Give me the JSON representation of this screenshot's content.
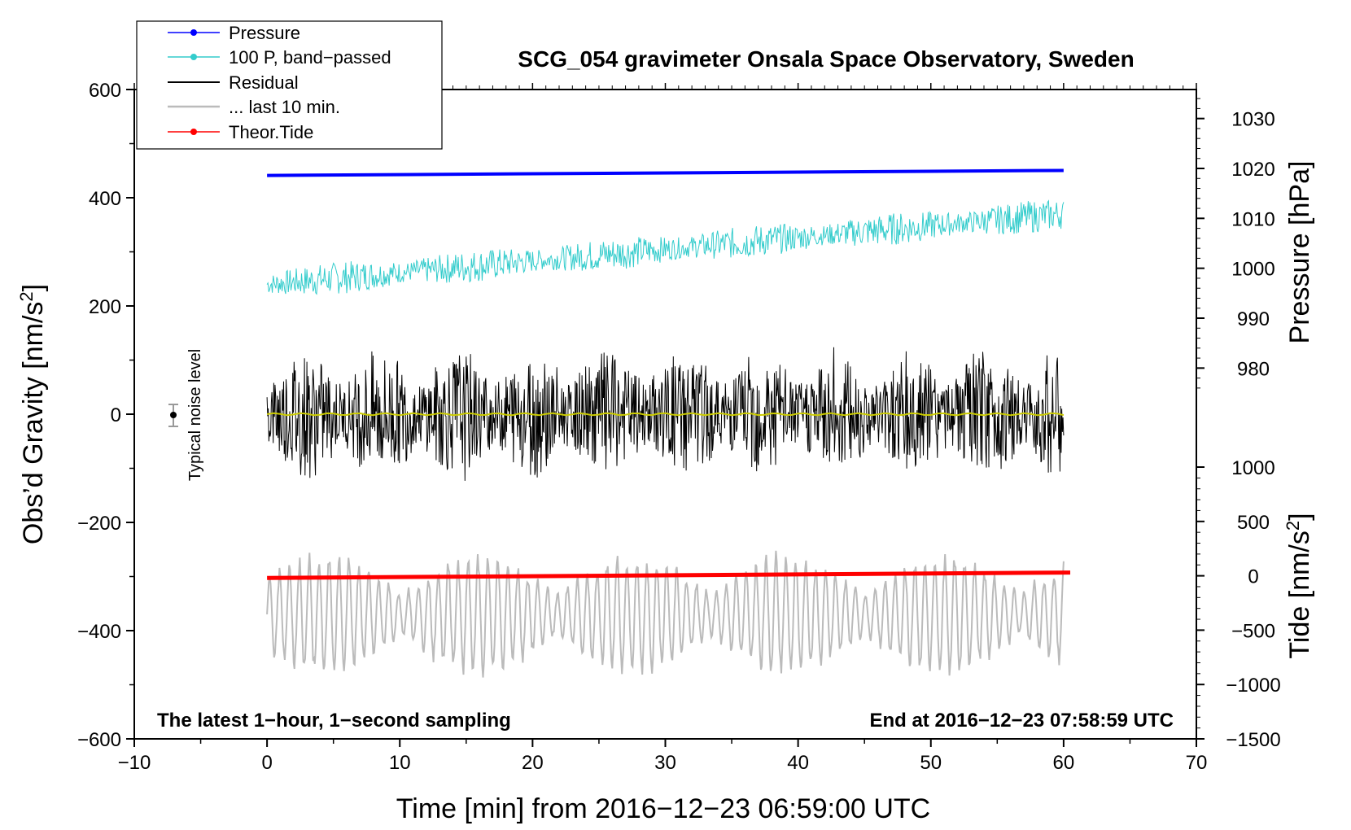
{
  "chart_data": {
    "type": "line",
    "title": "SCG_054 gravimeter Onsala Space Observatory, Sweden",
    "xlabel": "Time [min] from 2016−12−23 06:59:00 UTC",
    "ylabel_left": "Obs’d Gravity [nm/s",
    "ylabel_left_sup": "2",
    "ylabel_left_close": "]",
    "ylabel_pressure": "Pressure [hPa]",
    "ylabel_tide": "Tide [nm/s",
    "ylabel_tide_sup": "2",
    "ylabel_tide_close": "]",
    "xlim": [
      -10,
      70
    ],
    "ylim": [
      -600,
      600
    ],
    "x_ticks": [
      "−10",
      "0",
      "10",
      "20",
      "30",
      "40",
      "50",
      "60",
      "70"
    ],
    "x_tick_values": [
      -10,
      0,
      10,
      20,
      30,
      40,
      50,
      60,
      70
    ],
    "y_ticks": [
      "600",
      "400",
      "200",
      "0",
      "−200",
      "−400",
      "−600"
    ],
    "y_tick_values": [
      600,
      400,
      200,
      0,
      -200,
      -400,
      -600
    ],
    "pressure_axis": {
      "ticks": [
        "1030",
        "1020",
        "1010",
        "1000",
        "990",
        "980"
      ],
      "tick_values": [
        1030,
        1020,
        1010,
        1000,
        990,
        980
      ],
      "range_hpa": [
        975,
        1035
      ]
    },
    "tide_axis": {
      "ticks": [
        "1000",
        "500",
        "0",
        "−500",
        "−1000",
        "−1500"
      ],
      "tick_values": [
        1000,
        500,
        0,
        -500,
        -1000,
        -1500
      ],
      "range_nm_s2": [
        -1500,
        1000
      ]
    },
    "legend": [
      {
        "label": "Pressure",
        "color": "#0000ff",
        "marker": true
      },
      {
        "label": "100 P, band−passed",
        "color": "#33cccc",
        "marker": true
      },
      {
        "label": "Residual",
        "color": "#000000",
        "marker": false
      },
      {
        "label": "... last 10 min.",
        "color": "#bbbbbb",
        "marker": false
      },
      {
        "label": "Theor.Tide",
        "color": "#ff0000",
        "marker": true
      }
    ],
    "legend_position": "top-left",
    "series": [
      {
        "name": "Pressure",
        "color": "#0000ff",
        "axis": "pressure_hpa",
        "x": [
          0,
          60
        ],
        "values": [
          1018.6,
          1019.6
        ]
      },
      {
        "name": "100 P, band-passed",
        "color": "#33cccc",
        "axis": "gravity",
        "x": [
          0,
          60
        ],
        "values": [
          240,
          370
        ],
        "noise_amplitude": 30
      },
      {
        "name": "Residual",
        "color": "#000000",
        "axis": "gravity",
        "x": [
          0,
          60
        ],
        "values": [
          0,
          0
        ],
        "noise_amplitude": 130
      },
      {
        "name": "Residual smoothed",
        "color": "#cccc00",
        "axis": "gravity",
        "x": [
          0,
          60
        ],
        "values": [
          0,
          0
        ]
      },
      {
        "name": "... last 10 min.",
        "color": "#bbbbbb",
        "axis": "gravity",
        "x": [
          0,
          60
        ],
        "values": [
          -370,
          -370
        ],
        "noise_amplitude": 120
      },
      {
        "name": "Theor.Tide",
        "color": "#ff0000",
        "axis": "tide_nm_s2",
        "x": [
          0,
          60.5
        ],
        "values": [
          -20,
          30
        ]
      }
    ],
    "noise_level": {
      "x": -7,
      "y": 0,
      "err": 22,
      "label": "Typical noise level"
    },
    "corner_left": "The latest 1−hour, 1−second sampling",
    "corner_right": "End at 2016−12−23 07:58:59 UTC"
  }
}
